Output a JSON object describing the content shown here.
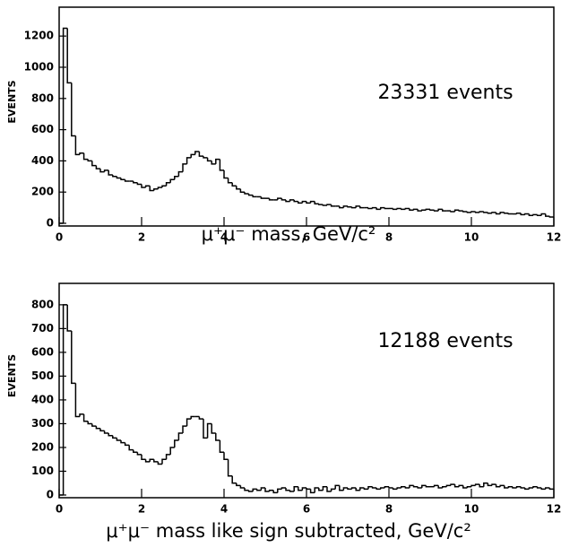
{
  "chart_data": [
    {
      "type": "histogram",
      "annotation": "23331 events",
      "y_label": "EVENTS",
      "x_label": "μ⁺μ⁻ mass, GeV/c²",
      "bins": [
        0,
        0.1,
        0.2,
        0.3,
        0.4,
        0.5,
        0.6,
        0.7,
        0.8,
        0.9,
        1,
        1.1,
        1.2,
        1.3,
        1.4,
        1.5,
        1.6,
        1.7,
        1.8,
        1.9,
        2,
        2.1,
        2.2,
        2.3,
        2.4,
        2.5,
        2.6,
        2.7,
        2.8,
        2.9,
        3,
        3.1,
        3.2,
        3.3,
        3.4,
        3.5,
        3.6,
        3.7,
        3.8,
        3.9,
        4,
        4.1,
        4.2,
        4.3,
        4.4,
        4.5,
        4.6,
        4.7,
        4.8,
        4.9,
        5,
        5.1,
        5.2,
        5.3,
        5.4,
        5.5,
        5.6,
        5.7,
        5.8,
        5.9,
        6,
        6.1,
        6.2,
        6.3,
        6.4,
        6.5,
        6.6,
        6.7,
        6.8,
        6.9,
        7,
        7.1,
        7.2,
        7.3,
        7.4,
        7.5,
        7.6,
        7.7,
        7.8,
        7.9,
        8,
        8.1,
        8.2,
        8.3,
        8.4,
        8.5,
        8.6,
        8.7,
        8.8,
        8.9,
        9,
        9.1,
        9.2,
        9.3,
        9.4,
        9.5,
        9.6,
        9.7,
        9.8,
        9.9,
        10,
        10.1,
        10.2,
        10.3,
        10.4,
        10.5,
        10.6,
        10.7,
        10.8,
        10.9,
        11,
        11.1,
        11.2,
        11.3,
        11.4,
        11.5,
        11.6,
        11.7,
        11.8,
        11.9,
        12
      ],
      "values": [
        0,
        1250,
        900,
        560,
        440,
        450,
        410,
        400,
        370,
        350,
        330,
        340,
        310,
        300,
        290,
        280,
        270,
        270,
        260,
        250,
        230,
        240,
        210,
        220,
        230,
        240,
        260,
        280,
        300,
        330,
        380,
        420,
        440,
        460,
        430,
        420,
        400,
        380,
        410,
        340,
        290,
        260,
        240,
        220,
        200,
        190,
        180,
        170,
        170,
        160,
        160,
        150,
        150,
        160,
        150,
        140,
        150,
        140,
        130,
        140,
        130,
        140,
        125,
        120,
        115,
        120,
        110,
        110,
        100,
        110,
        105,
        100,
        110,
        100,
        100,
        95,
        100,
        90,
        100,
        95,
        95,
        90,
        95,
        90,
        95,
        85,
        90,
        80,
        85,
        90,
        85,
        80,
        90,
        80,
        80,
        75,
        85,
        80,
        75,
        70,
        75,
        70,
        75,
        70,
        65,
        70,
        60,
        70,
        65,
        60,
        60,
        65,
        55,
        60,
        50,
        55,
        50,
        60,
        45,
        40
      ],
      "color": "#000000",
      "xlim": [
        0,
        12
      ],
      "xticks": [
        0,
        2,
        4,
        6,
        8,
        10,
        12
      ],
      "ylim": [
        0,
        1385
      ],
      "yticks": [
        0,
        200,
        400,
        600,
        800,
        1000,
        1200
      ]
    },
    {
      "type": "histogram",
      "annotation": "12188 events",
      "y_label": "EVENTS",
      "x_label": "μ⁺μ⁻ mass like sign subtracted, GeV/c²",
      "bins": [
        0,
        0.1,
        0.2,
        0.3,
        0.4,
        0.5,
        0.6,
        0.7,
        0.8,
        0.9,
        1,
        1.1,
        1.2,
        1.3,
        1.4,
        1.5,
        1.6,
        1.7,
        1.8,
        1.9,
        2,
        2.1,
        2.2,
        2.3,
        2.4,
        2.5,
        2.6,
        2.7,
        2.8,
        2.9,
        3,
        3.1,
        3.2,
        3.3,
        3.4,
        3.5,
        3.6,
        3.7,
        3.8,
        3.9,
        4,
        4.1,
        4.2,
        4.3,
        4.4,
        4.5,
        4.6,
        4.7,
        4.8,
        4.9,
        5,
        5.1,
        5.2,
        5.3,
        5.4,
        5.5,
        5.6,
        5.7,
        5.8,
        5.9,
        6,
        6.1,
        6.2,
        6.3,
        6.4,
        6.5,
        6.6,
        6.7,
        6.8,
        6.9,
        7,
        7.1,
        7.2,
        7.3,
        7.4,
        7.5,
        7.6,
        7.7,
        7.8,
        7.9,
        8,
        8.1,
        8.2,
        8.3,
        8.4,
        8.5,
        8.6,
        8.7,
        8.8,
        8.9,
        9,
        9.1,
        9.2,
        9.3,
        9.4,
        9.5,
        9.6,
        9.7,
        9.8,
        9.9,
        10,
        10.1,
        10.2,
        10.3,
        10.4,
        10.5,
        10.6,
        10.7,
        10.8,
        10.9,
        11,
        11.1,
        11.2,
        11.3,
        11.4,
        11.5,
        11.6,
        11.7,
        11.8,
        11.9,
        12
      ],
      "values": [
        0,
        800,
        690,
        470,
        330,
        340,
        310,
        300,
        290,
        280,
        270,
        260,
        250,
        240,
        230,
        220,
        210,
        190,
        180,
        170,
        150,
        140,
        150,
        140,
        130,
        150,
        170,
        200,
        230,
        260,
        290,
        320,
        330,
        330,
        320,
        240,
        300,
        260,
        230,
        180,
        150,
        80,
        50,
        40,
        30,
        20,
        15,
        25,
        20,
        30,
        15,
        20,
        10,
        25,
        30,
        20,
        15,
        35,
        20,
        30,
        25,
        10,
        30,
        20,
        35,
        15,
        25,
        40,
        20,
        30,
        25,
        30,
        20,
        30,
        25,
        35,
        30,
        25,
        30,
        35,
        30,
        25,
        30,
        35,
        30,
        40,
        35,
        30,
        40,
        35,
        35,
        40,
        30,
        35,
        40,
        45,
        35,
        40,
        30,
        35,
        40,
        45,
        35,
        50,
        40,
        45,
        35,
        40,
        30,
        35,
        30,
        35,
        30,
        25,
        30,
        35,
        30,
        25,
        30,
        25
      ],
      "color": "#000000",
      "xlim": [
        0,
        12
      ],
      "xticks": [
        0,
        2,
        4,
        6,
        8,
        10,
        12
      ],
      "ylim": [
        0,
        890
      ],
      "yticks": [
        0,
        100,
        200,
        300,
        400,
        500,
        600,
        700,
        800
      ]
    }
  ]
}
